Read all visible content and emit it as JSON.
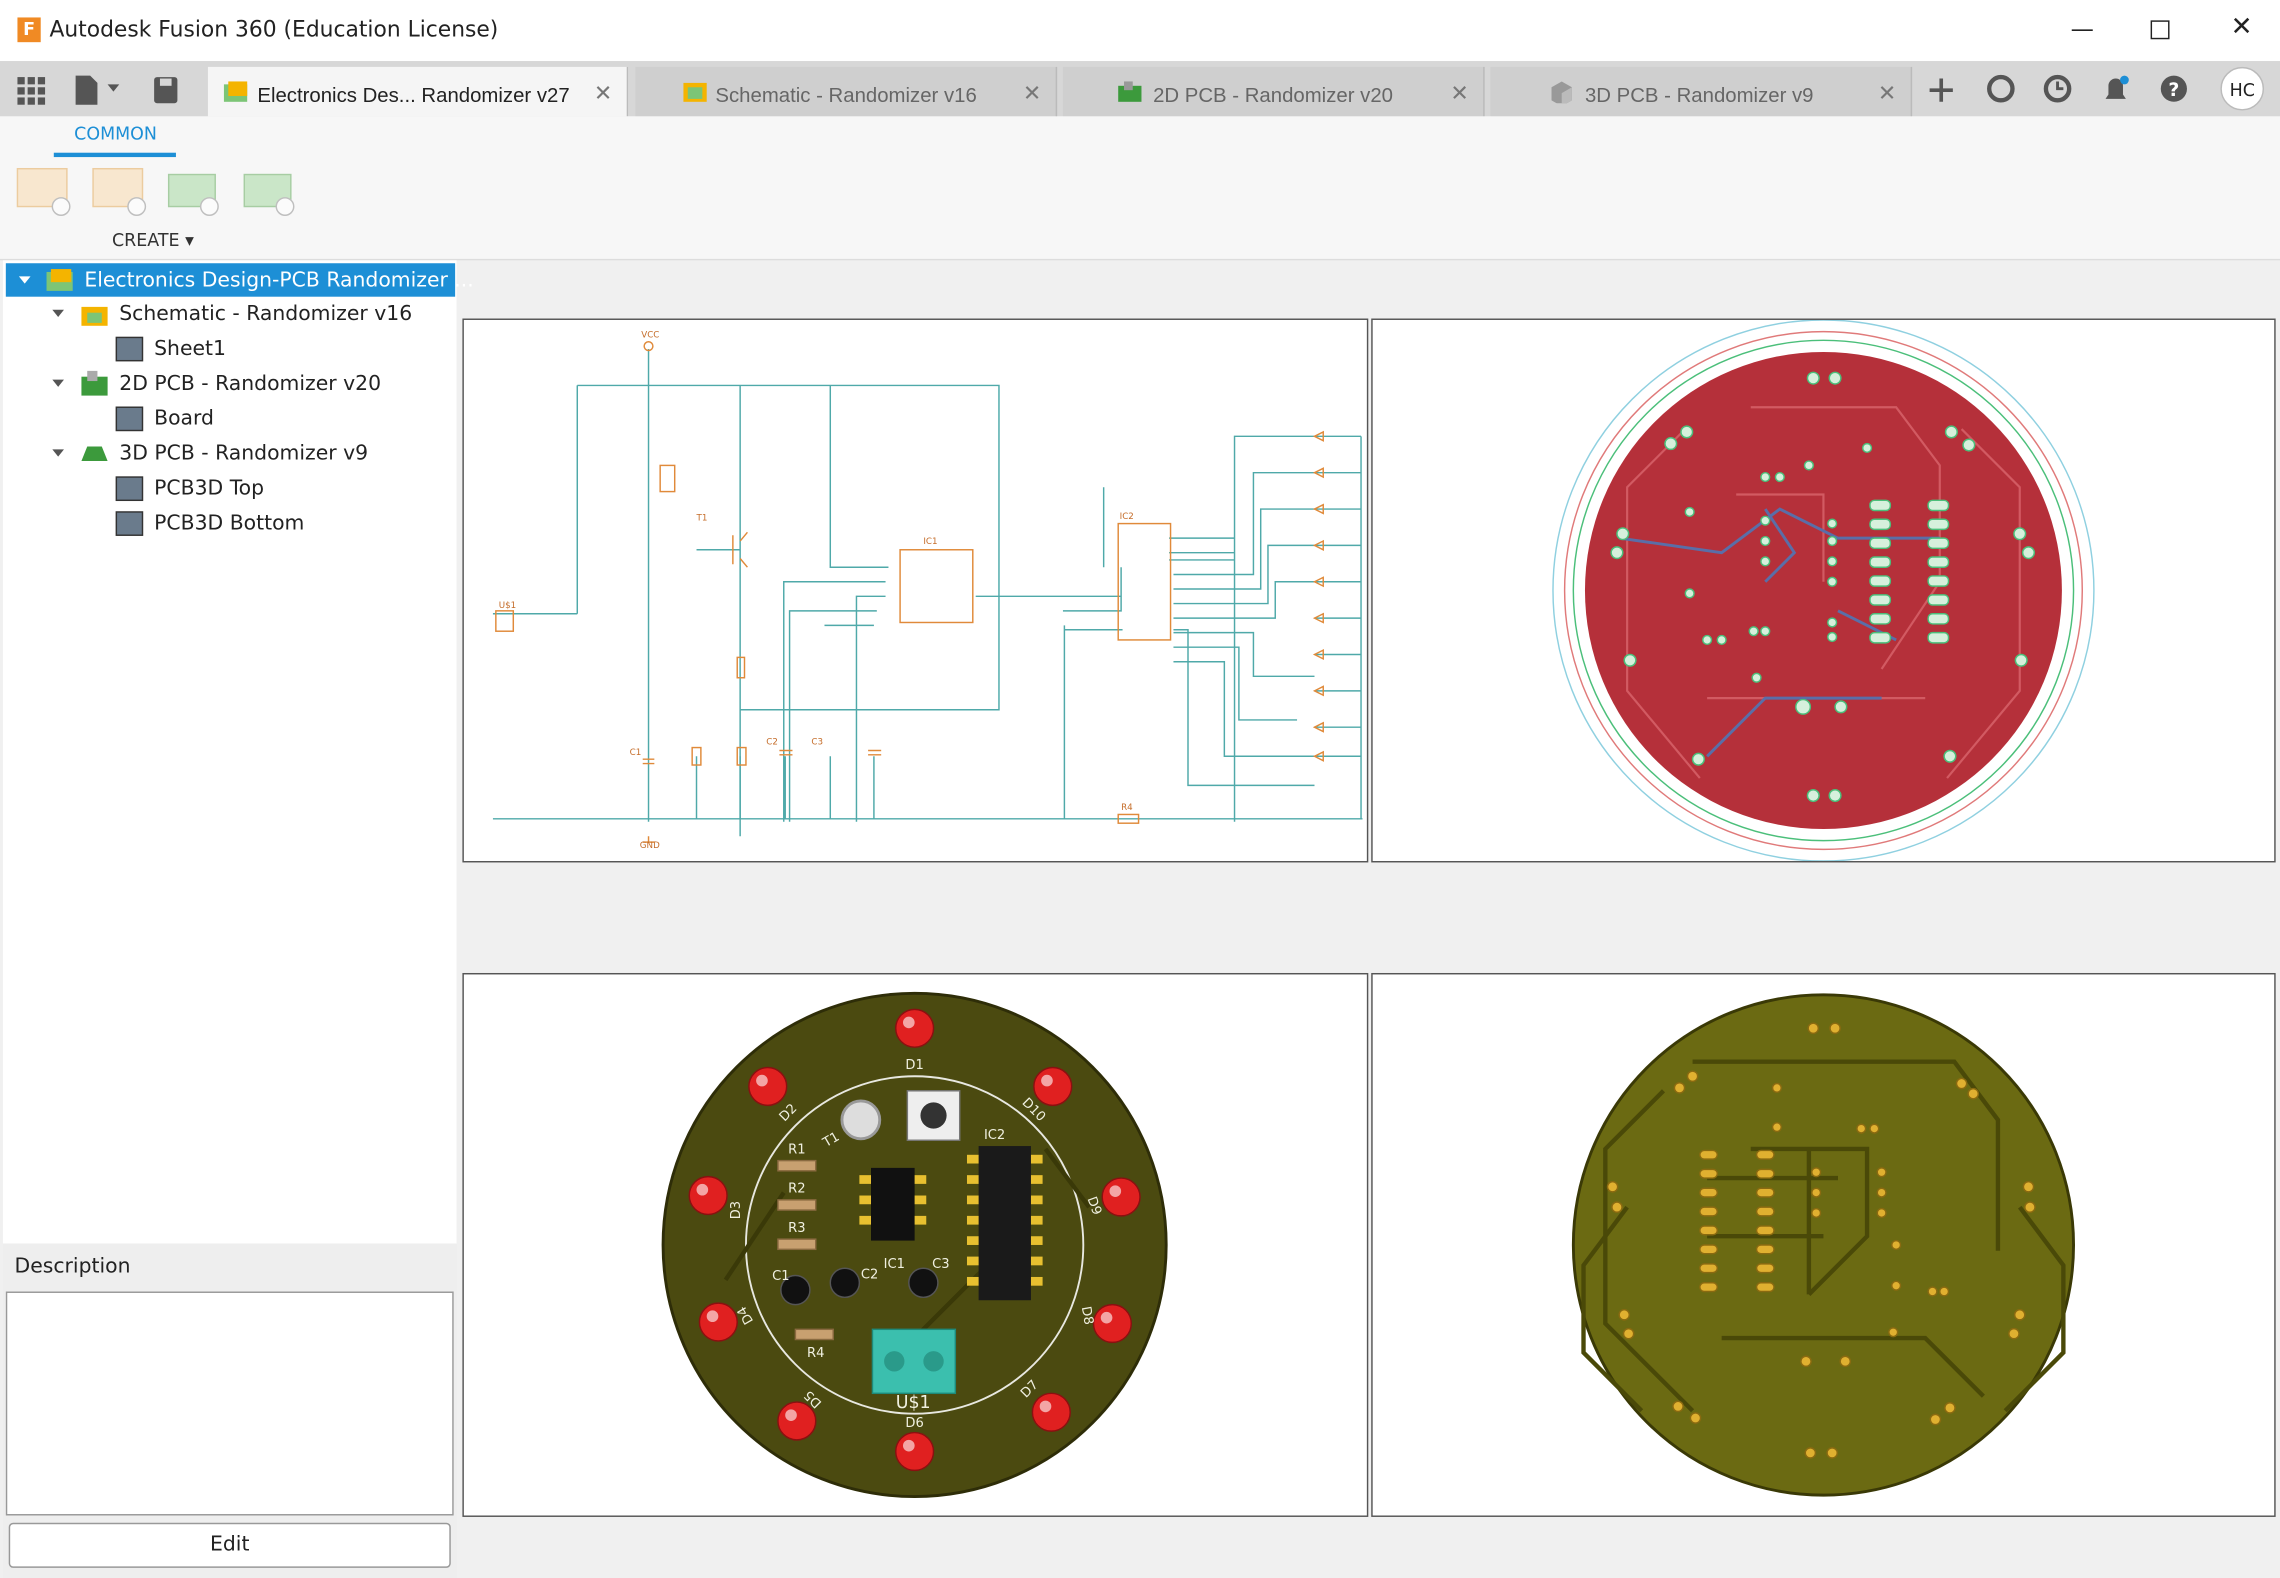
{
  "window": {
    "title": "Autodesk Fusion 360 (Education License)"
  },
  "tabs": [
    {
      "label": "Electronics Des... Randomizer v27"
    },
    {
      "label": "Schematic - Randomizer v16"
    },
    {
      "label": "2D PCB - Randomizer v20"
    },
    {
      "label": "3D PCB - Randomizer v9"
    }
  ],
  "user": {
    "initials": "HC"
  },
  "toolbar": {
    "tab": "COMMON",
    "group": "CREATE"
  },
  "tree": [
    {
      "label": "Electronics Design-PCB Randomizer ..."
    },
    {
      "label": "Schematic - Randomizer v16"
    },
    {
      "label": "Sheet1"
    },
    {
      "label": "2D PCB - Randomizer v20"
    },
    {
      "label": "Board"
    },
    {
      "label": "3D PCB - Randomizer v9"
    },
    {
      "label": "PCB3D Top"
    },
    {
      "label": "PCB3D Bottom"
    }
  ],
  "description": {
    "label": "Description"
  },
  "edit_button": {
    "label": "Edit"
  },
  "schematic": {
    "labels": [
      "VCC",
      "GND",
      "T1",
      "IC1",
      "IC2",
      "U$1",
      "R4",
      "C1",
      "C2",
      "C3"
    ]
  },
  "pcb_top": {
    "labels": [
      "D1",
      "D2",
      "D3",
      "D4",
      "D5",
      "D6",
      "D7",
      "D8",
      "D9",
      "D10",
      "T1",
      "IC1",
      "IC2",
      "R1",
      "R2",
      "R3",
      "R4",
      "C1",
      "C2",
      "C3",
      "U$1"
    ]
  }
}
